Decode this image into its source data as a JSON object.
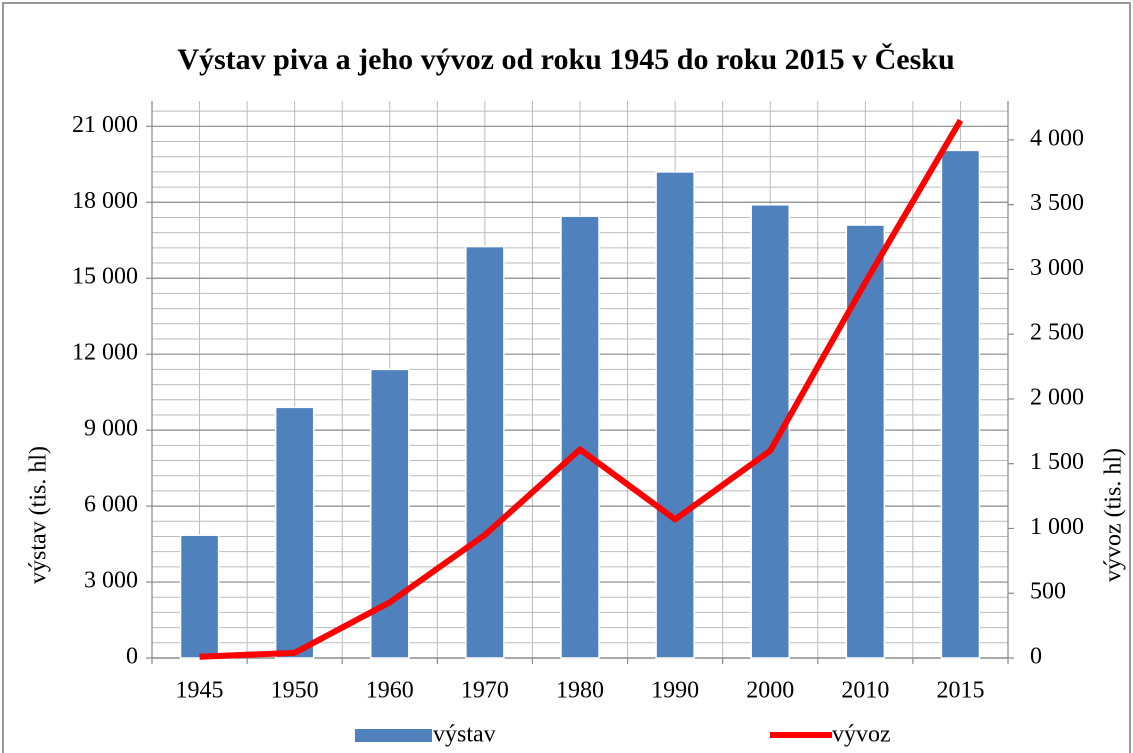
{
  "chart_data": {
    "type": "bar_line",
    "title": "Výstav piva a jeho vývoz od roku 1945 do roku 2015 v Česku",
    "categories": [
      "1945",
      "1950",
      "1960",
      "1970",
      "1980",
      "1990",
      "2000",
      "2010",
      "2015"
    ],
    "series": [
      {
        "name": "výstav",
        "color": "#4f81bd",
        "type": "bar",
        "values": [
          4850,
          9900,
          11400,
          16250,
          17450,
          19200,
          17900,
          17100,
          20050
        ]
      },
      {
        "name": "vývoz",
        "color": "#ff0000",
        "type": "line",
        "axis": "y2",
        "values": [
          10,
          40,
          430,
          950,
          1610,
          1070,
          1600,
          2900,
          4150
        ]
      }
    ],
    "ylabel": "výstav (tis. hl)",
    "y2label": "vývoz (tis. hl)",
    "ylim": [
      0,
      22000
    ],
    "yticks": [
      0,
      {
        "value": 3000,
        "label": "3 000"
      },
      {
        "value": 6000,
        "label": "6 000"
      },
      {
        "value": 9000,
        "label": "9 000"
      },
      {
        "value": 12000,
        "label": "12 000"
      },
      {
        "value": 15000,
        "label": "15 000"
      },
      {
        "value": 18000,
        "label": "18 000"
      },
      {
        "value": 21000,
        "label": "21 000"
      }
    ],
    "y2lim": [
      0,
      4300
    ],
    "y2ticks": [
      0,
      500,
      {
        "value": 1000,
        "label": "1 000"
      },
      {
        "value": 1500,
        "label": "1 500"
      },
      {
        "value": 2000,
        "label": "2 000"
      },
      {
        "value": 2500,
        "label": "2 500"
      },
      {
        "value": 3000,
        "label": "3 000"
      },
      {
        "value": 3500,
        "label": "3 500"
      },
      {
        "value": 4000,
        "label": "4 000"
      }
    ],
    "grid": true,
    "legend": "bottom"
  }
}
